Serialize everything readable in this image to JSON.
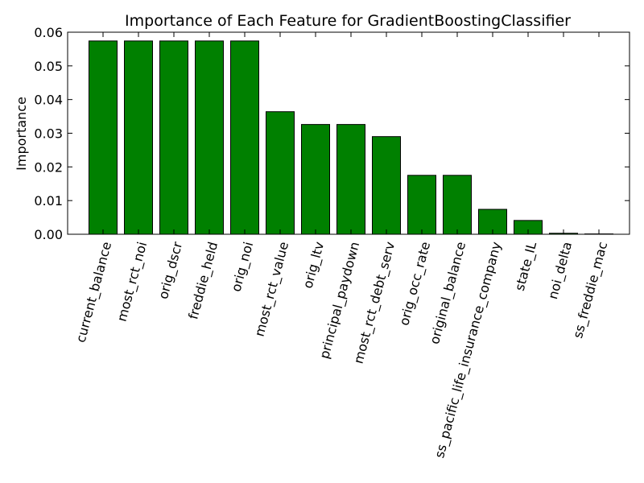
{
  "chart_data": {
    "type": "bar",
    "title": "Importance of Each Feature for GradientBoostingClassifier",
    "xlabel": "",
    "ylabel": "Importance",
    "ylim": [
      0,
      0.06
    ],
    "yticks": [
      "0.00",
      "0.01",
      "0.02",
      "0.03",
      "0.04",
      "0.05",
      "0.06"
    ],
    "grid": false,
    "bar_color": "#008000",
    "edge_color": "#000000",
    "xtick_rotation": 75,
    "categories": [
      "current_balance",
      "most_rct_noi",
      "orig_dscr",
      "freddie_held",
      "orig_noi",
      "most_rct_value",
      "orig_ltv",
      "principal_paydown",
      "most_rct_debt_serv",
      "orig_occ_rate",
      "original_balance",
      "ss_pacific_life_insurance_company",
      "state_IL",
      "noi_delta",
      "ss_freddie_mac"
    ],
    "values": [
      0.0574,
      0.0574,
      0.0574,
      0.0574,
      0.0574,
      0.0364,
      0.0326,
      0.0326,
      0.029,
      0.0175,
      0.0175,
      0.0074,
      0.0041,
      0.0003,
      0.0001
    ]
  }
}
